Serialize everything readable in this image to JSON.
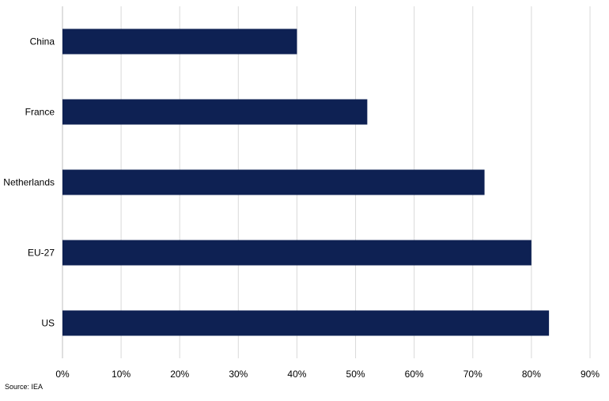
{
  "chart_data": {
    "type": "bar",
    "orientation": "horizontal",
    "categories": [
      "China",
      "France",
      "Netherlands",
      "EU-27",
      "US"
    ],
    "values": [
      0.4,
      0.52,
      0.72,
      0.8,
      0.83
    ],
    "xlim": [
      0,
      0.9
    ],
    "xticks": [
      "0%",
      "10%",
      "20%",
      "30%",
      "40%",
      "50%",
      "60%",
      "70%",
      "80%",
      "90%"
    ],
    "grid": true,
    "bar_color": "#0e2153",
    "grid_color": "#d9d9d9"
  },
  "source": "Source: IEA"
}
